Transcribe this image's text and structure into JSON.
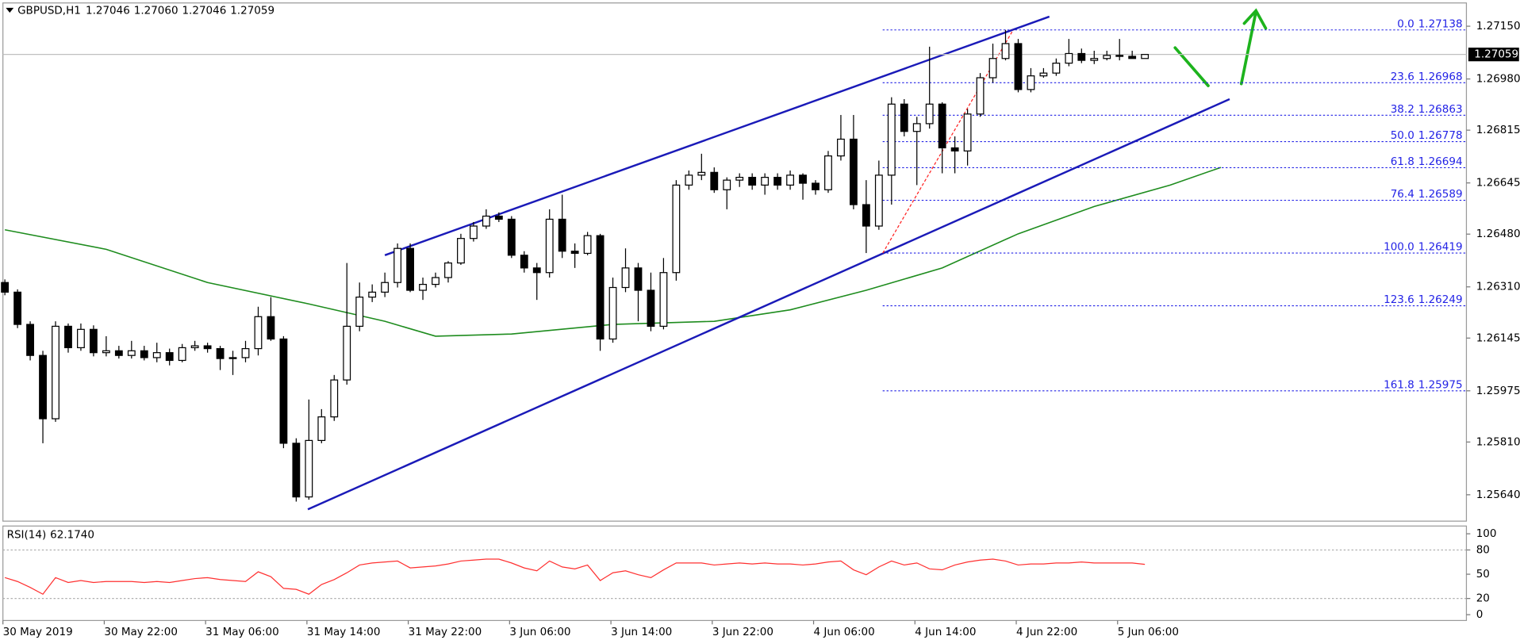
{
  "chart_data": {
    "type": "candlestick",
    "title": "GBPUSD,H1",
    "quote": [
      "1.27046",
      "1.27060",
      "1.27046",
      "1.27059"
    ],
    "categories": [
      "30 May 2019",
      null,
      null,
      null,
      null,
      null,
      null,
      null,
      "30 May 22:00",
      null,
      null,
      null,
      null,
      null,
      null,
      null,
      "31 May 06:00",
      null,
      null,
      null,
      null,
      null,
      null,
      null,
      "31 May 14:00",
      null,
      null,
      null,
      null,
      null,
      null,
      null,
      "31 May 22:00",
      null,
      null,
      null,
      null,
      null,
      null,
      null,
      "3 Jun 06:00",
      null,
      null,
      null,
      null,
      null,
      null,
      null,
      "3 Jun 14:00",
      null,
      null,
      null,
      null,
      null,
      null,
      null,
      "3 Jun 22:00",
      null,
      null,
      null,
      null,
      null,
      null,
      null,
      "4 Jun 06:00",
      null,
      null,
      null,
      null,
      null,
      null,
      null,
      "4 Jun 14:00",
      null,
      null,
      null,
      null,
      null,
      null,
      null,
      "4 Jun 22:00",
      null,
      null,
      null,
      null,
      null,
      null,
      null,
      "5 Jun 06:00",
      null,
      null
    ],
    "open": [
      1.26324,
      1.26293,
      1.26189,
      1.26089,
      1.25885,
      1.26183,
      1.26114,
      1.26173,
      1.26098,
      1.26104,
      1.26089,
      1.26104,
      1.26082,
      1.26098,
      1.26073,
      1.26114,
      1.2612,
      1.26111,
      1.26079,
      1.26082,
      1.26111,
      1.26214,
      1.26142,
      1.25806,
      1.25633,
      1.25815,
      1.25891,
      1.2601,
      1.26183,
      1.26277,
      1.26293,
      1.26324,
      1.26434,
      1.26299,
      1.26318,
      1.2634,
      1.26387,
      1.26466,
      1.26506,
      1.26538,
      1.26528,
      1.26412,
      1.26371,
      1.26356,
      1.26528,
      1.26425,
      1.26418,
      1.26475,
      1.26142,
      1.26308,
      1.26371,
      1.26299,
      1.26183,
      1.26356,
      1.26638,
      1.2667,
      1.26679,
      1.26623,
      1.26654,
      1.26663,
      1.26638,
      1.26663,
      1.26638,
      1.2667,
      1.26644,
      1.26623,
      1.26732,
      1.26786,
      1.26575,
      1.26506,
      1.2667,
      1.26899,
      1.26811,
      1.26836,
      1.26899,
      1.26758,
      1.26748,
      1.26867,
      1.26984,
      1.27046,
      1.27094,
      1.26946,
      1.2699,
      1.26999,
      1.27031,
      1.27062,
      1.2704,
      1.27046,
      1.27056,
      1.27053,
      1.27046
    ],
    "high": [
      1.26334,
      1.26302,
      1.26199,
      1.26104,
      1.26199,
      1.26192,
      1.26192,
      1.26186,
      1.26151,
      1.2612,
      1.26136,
      1.2612,
      1.2613,
      1.26111,
      1.26126,
      1.26136,
      1.2613,
      1.2612,
      1.26104,
      1.26136,
      1.26246,
      1.26277,
      1.26151,
      1.25822,
      1.25947,
      1.25916,
      1.26026,
      1.26387,
      1.26324,
      1.26318,
      1.26356,
      1.2645,
      1.2645,
      1.2634,
      1.26356,
      1.26393,
      1.26481,
      1.26519,
      1.2656,
      1.2655,
      1.26538,
      1.26425,
      1.26387,
      1.2656,
      1.26607,
      1.2645,
      1.26487,
      1.26481,
      1.2634,
      1.26434,
      1.26387,
      1.26356,
      1.26403,
      1.26654,
      1.26685,
      1.26739,
      1.26695,
      1.26663,
      1.26676,
      1.26676,
      1.26676,
      1.26676,
      1.26685,
      1.26676,
      1.26654,
      1.26748,
      1.26864,
      1.26864,
      1.26654,
      1.26717,
      1.26921,
      1.26915,
      1.26858,
      1.27084,
      1.26905,
      1.26795,
      1.26883,
      1.26999,
      1.27094,
      1.27138,
      1.27109,
      1.27015,
      1.27015,
      1.27046,
      1.27109,
      1.27078,
      1.27071,
      1.27071,
      1.27109,
      1.27071,
      1.2706
    ],
    "low": [
      1.26283,
      1.26177,
      1.26073,
      1.25806,
      1.25875,
      1.26098,
      1.26104,
      1.26086,
      1.26086,
      1.26079,
      1.26079,
      1.26073,
      1.26067,
      1.26057,
      1.26067,
      1.26104,
      1.26098,
      1.26042,
      1.26026,
      1.26067,
      1.26089,
      1.26136,
      1.2579,
      1.25618,
      1.25624,
      1.25806,
      1.25878,
      1.25995,
      1.26167,
      1.26261,
      1.26277,
      1.26308,
      1.26293,
      1.26268,
      1.26308,
      1.26324,
      1.26381,
      1.26456,
      1.26497,
      1.26519,
      1.26403,
      1.26356,
      1.26268,
      1.2634,
      1.26403,
      1.26371,
      1.26412,
      1.26104,
      1.2613,
      1.26293,
      1.26199,
      1.26167,
      1.26173,
      1.2633,
      1.26623,
      1.26654,
      1.26613,
      1.2656,
      1.26632,
      1.26623,
      1.26607,
      1.26623,
      1.26623,
      1.26591,
      1.26607,
      1.26613,
      1.26717,
      1.2656,
      1.26419,
      1.26494,
      1.26575,
      1.26795,
      1.26638,
      1.2682,
      1.26676,
      1.26676,
      1.26701,
      1.26858,
      1.26968,
      1.2704,
      1.26937,
      1.26937,
      1.26984,
      1.2699,
      1.27021,
      1.27031,
      1.27028,
      1.2704,
      1.2704,
      1.27046,
      1.27046
    ],
    "close": [
      1.26293,
      1.26189,
      1.26089,
      1.25885,
      1.26183,
      1.26114,
      1.26173,
      1.26098,
      1.26104,
      1.26089,
      1.26104,
      1.26082,
      1.26098,
      1.26073,
      1.26114,
      1.2612,
      1.26111,
      1.26079,
      1.26082,
      1.26111,
      1.26214,
      1.26142,
      1.25806,
      1.25633,
      1.25815,
      1.25891,
      1.2601,
      1.26183,
      1.26277,
      1.26293,
      1.26324,
      1.26434,
      1.26299,
      1.26318,
      1.2634,
      1.26387,
      1.26466,
      1.26506,
      1.26538,
      1.26528,
      1.26412,
      1.26371,
      1.26356,
      1.26528,
      1.26425,
      1.26418,
      1.26475,
      1.26142,
      1.26308,
      1.26371,
      1.26299,
      1.26183,
      1.26356,
      1.26638,
      1.2667,
      1.26679,
      1.26623,
      1.26654,
      1.26663,
      1.26638,
      1.26663,
      1.26638,
      1.2667,
      1.26644,
      1.26623,
      1.26732,
      1.26786,
      1.26575,
      1.26506,
      1.2667,
      1.26899,
      1.26811,
      1.26836,
      1.26899,
      1.26758,
      1.26748,
      1.26867,
      1.26984,
      1.27046,
      1.27094,
      1.26946,
      1.2699,
      1.26999,
      1.27031,
      1.27062,
      1.2704,
      1.27046,
      1.27056,
      1.27053,
      1.27046,
      1.27059
    ],
    "up_color": "#ffffff",
    "down_color": "#000000",
    "ylim": [
      1.25555,
      1.27225
    ],
    "yticks": [
      {
        "value": 1.2715,
        "label": "1.27150"
      },
      {
        "value": 1.2698,
        "label": "1.26980"
      },
      1.26815,
      1.26645,
      {
        "value": 1.2648,
        "label": "1.26480"
      },
      {
        "value": 1.2631,
        "label": "1.26310"
      },
      1.26145,
      1.25975,
      {
        "value": 1.2581,
        "label": "1.25810"
      },
      {
        "value": 1.2564,
        "label": "1.25640"
      }
    ],
    "moving_average": {
      "color": "#1e8c1e",
      "x": [
        0,
        8,
        16,
        24,
        30,
        34,
        40,
        48,
        56,
        62,
        68,
        74,
        80,
        86,
        92,
        96
      ],
      "values": [
        1.26494,
        1.26431,
        1.26324,
        1.26255,
        1.26199,
        1.26151,
        1.26158,
        1.26189,
        1.26199,
        1.26236,
        1.26299,
        1.26371,
        1.26481,
        1.26569,
        1.26638,
        1.26695
      ]
    },
    "trendlines": [
      {
        "color": "#1a1ab8",
        "x": [
          30,
          82.46
        ],
        "values": [
          1.26412,
          1.27181
        ]
      },
      {
        "color": "#1a1ab8",
        "x": [
          23.92,
          96.69
        ],
        "values": [
          1.25593,
          1.26915
        ]
      },
      {
        "color": "#ff2020",
        "x": [
          69.31,
          79.6
        ],
        "values": [
          1.26419,
          1.27138
        ]
      }
    ],
    "fibonacci": {
      "color": "#2323e6",
      "x_start": 69.3,
      "levels": [
        {
          "ratio": "0.0",
          "price": 1.27138
        },
        {
          "ratio": "23.6",
          "price": 1.26968
        },
        {
          "ratio": "38.2",
          "price": 1.26863
        },
        {
          "ratio": "50.0",
          "price": 1.26778
        },
        {
          "ratio": "61.8",
          "price": 1.26694
        },
        {
          "ratio": "76.4",
          "price": 1.26589
        },
        {
          "ratio": "100.0",
          "price": 1.26419
        },
        {
          "ratio": "123.6",
          "price": 1.26249
        },
        {
          "ratio": "161.8",
          "price": 1.25975
        }
      ]
    },
    "rsi": {
      "type": "line",
      "title": "RSI(14)",
      "color": "#ff3030",
      "current": {
        "value": 62.174,
        "label": "62.1740"
      },
      "values": [
        45.8,
        41.0,
        33.7,
        25.3,
        45.8,
        39.8,
        42.2,
        39.8,
        41.0,
        41.0,
        41.0,
        39.8,
        41.0,
        39.8,
        42.2,
        44.6,
        45.8,
        43.4,
        42.2,
        41.0,
        53.0,
        47.0,
        32.5,
        31.3,
        25.3,
        37.3,
        43.4,
        51.8,
        61.4,
        63.9,
        65.1,
        66.3,
        57.8,
        59.0,
        60.2,
        62.7,
        66.3,
        67.5,
        68.7,
        68.7,
        63.9,
        57.8,
        54.2,
        66.3,
        59.0,
        56.6,
        61.4,
        42.2,
        51.8,
        54.2,
        49.4,
        45.8,
        55.4,
        63.9,
        63.9,
        63.9,
        61.4,
        62.7,
        63.9,
        62.7,
        63.9,
        62.7,
        62.7,
        61.4,
        62.7,
        65.1,
        66.3,
        55.4,
        49.4,
        59.0,
        66.3,
        61.4,
        63.9,
        56.6,
        55.4,
        61.4,
        65.1,
        67.5,
        68.7,
        66.3,
        61.4,
        62.7,
        62.7,
        63.9,
        63.9,
        65.1,
        63.9,
        63.9,
        63.9,
        63.9,
        62.174
      ],
      "ylim": [
        -7.2,
        109.6
      ],
      "yticks": [
        0,
        20,
        50,
        80,
        100
      ],
      "levels": [
        20,
        80
      ]
    }
  }
}
